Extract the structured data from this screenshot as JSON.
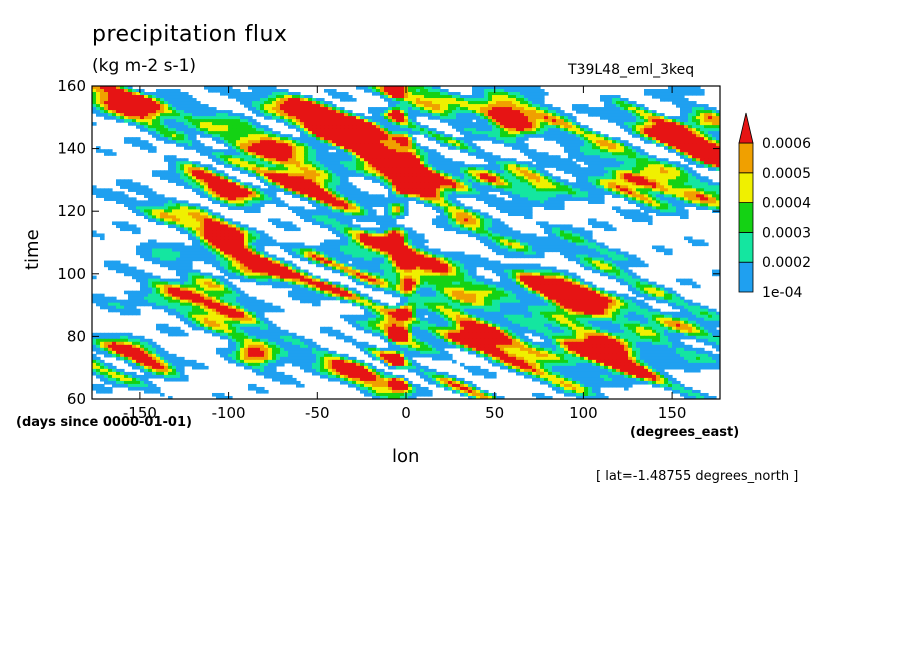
{
  "chart_data": {
    "type": "heatmap",
    "title": "precipitation flux",
    "units": "(kg m-2 s-1)",
    "run_name": "T39L48_eml_3keq",
    "xlabel": "lon",
    "ylabel": "time",
    "x_units": "(degrees_east)",
    "y_units": "(days since 0000-01-01)",
    "note": "[ lat=-1.48755 degrees_north ]",
    "xlim": [
      -177,
      177
    ],
    "ylim": [
      60,
      160
    ],
    "x_ticks": [
      -150,
      -100,
      -50,
      0,
      50,
      100,
      150
    ],
    "x_tick_labels": [
      "-150",
      "-100",
      "-50",
      "0",
      "50",
      "100",
      "150"
    ],
    "y_ticks": [
      60,
      80,
      100,
      120,
      140,
      160
    ],
    "y_tick_labels": [
      "60",
      "80",
      "100",
      "120",
      "140",
      "160"
    ],
    "colorbar": {
      "levels": [
        0.0001,
        0.0002,
        0.0003,
        0.0004,
        0.0005,
        0.0006
      ],
      "labels": [
        "1e-04",
        "0.0002",
        "0.0003",
        "0.0004",
        "0.0005",
        "0.0006"
      ],
      "colors": [
        "#ffffff",
        "#1fa0f0",
        "#14e6a0",
        "#14d214",
        "#f0f000",
        "#f0a000",
        "#e61414"
      ]
    },
    "features": {
      "stationary_band_lon": [
        -10,
        5
      ],
      "westward_streak_slope": "descending toward east"
    }
  }
}
